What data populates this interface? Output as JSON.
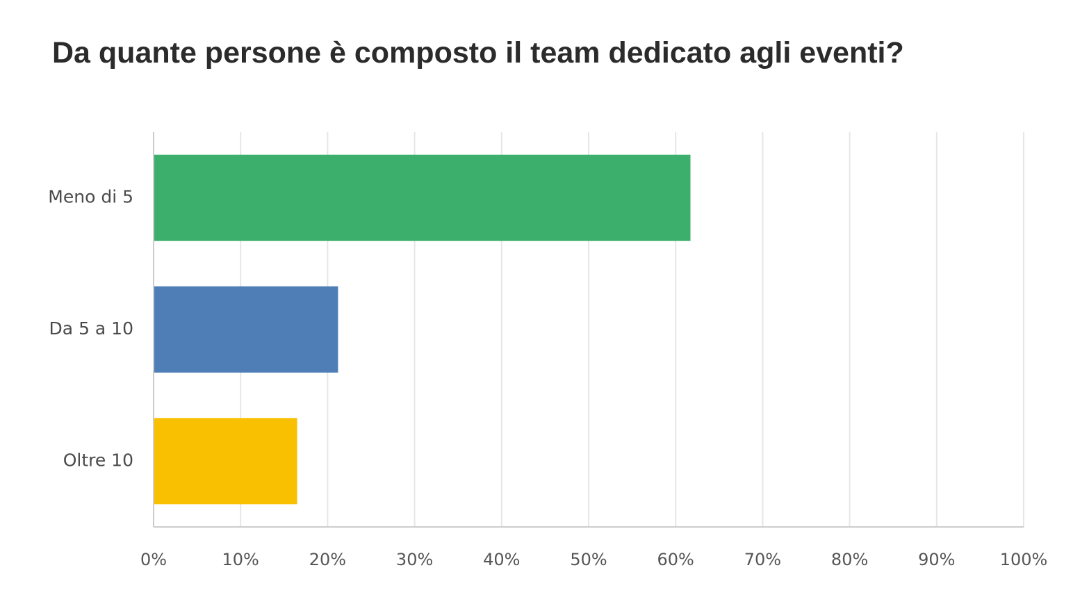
{
  "chart_data": {
    "type": "bar",
    "orientation": "horizontal",
    "title": "Da quante persone è composto il team dedicato agli eventi?",
    "xlabel": "",
    "ylabel": "",
    "categories": [
      "Meno di 5",
      "Da 5 a 10",
      "Oltre 10"
    ],
    "values": [
      61.7,
      21.2,
      16.5
    ],
    "value_unit": "%",
    "bar_colors": [
      "#3daf6c",
      "#4f7db5",
      "#f8c000"
    ],
    "xlim": [
      0,
      100
    ],
    "x_ticks": [
      0,
      10,
      20,
      30,
      40,
      50,
      60,
      70,
      80,
      90,
      100
    ],
    "x_tick_labels": [
      "0%",
      "10%",
      "20%",
      "30%",
      "40%",
      "50%",
      "60%",
      "70%",
      "80%",
      "90%",
      "100%"
    ],
    "grid": true,
    "legend": "none",
    "grid_color": "#e6e6e6",
    "axis_color": "#cccccc"
  }
}
